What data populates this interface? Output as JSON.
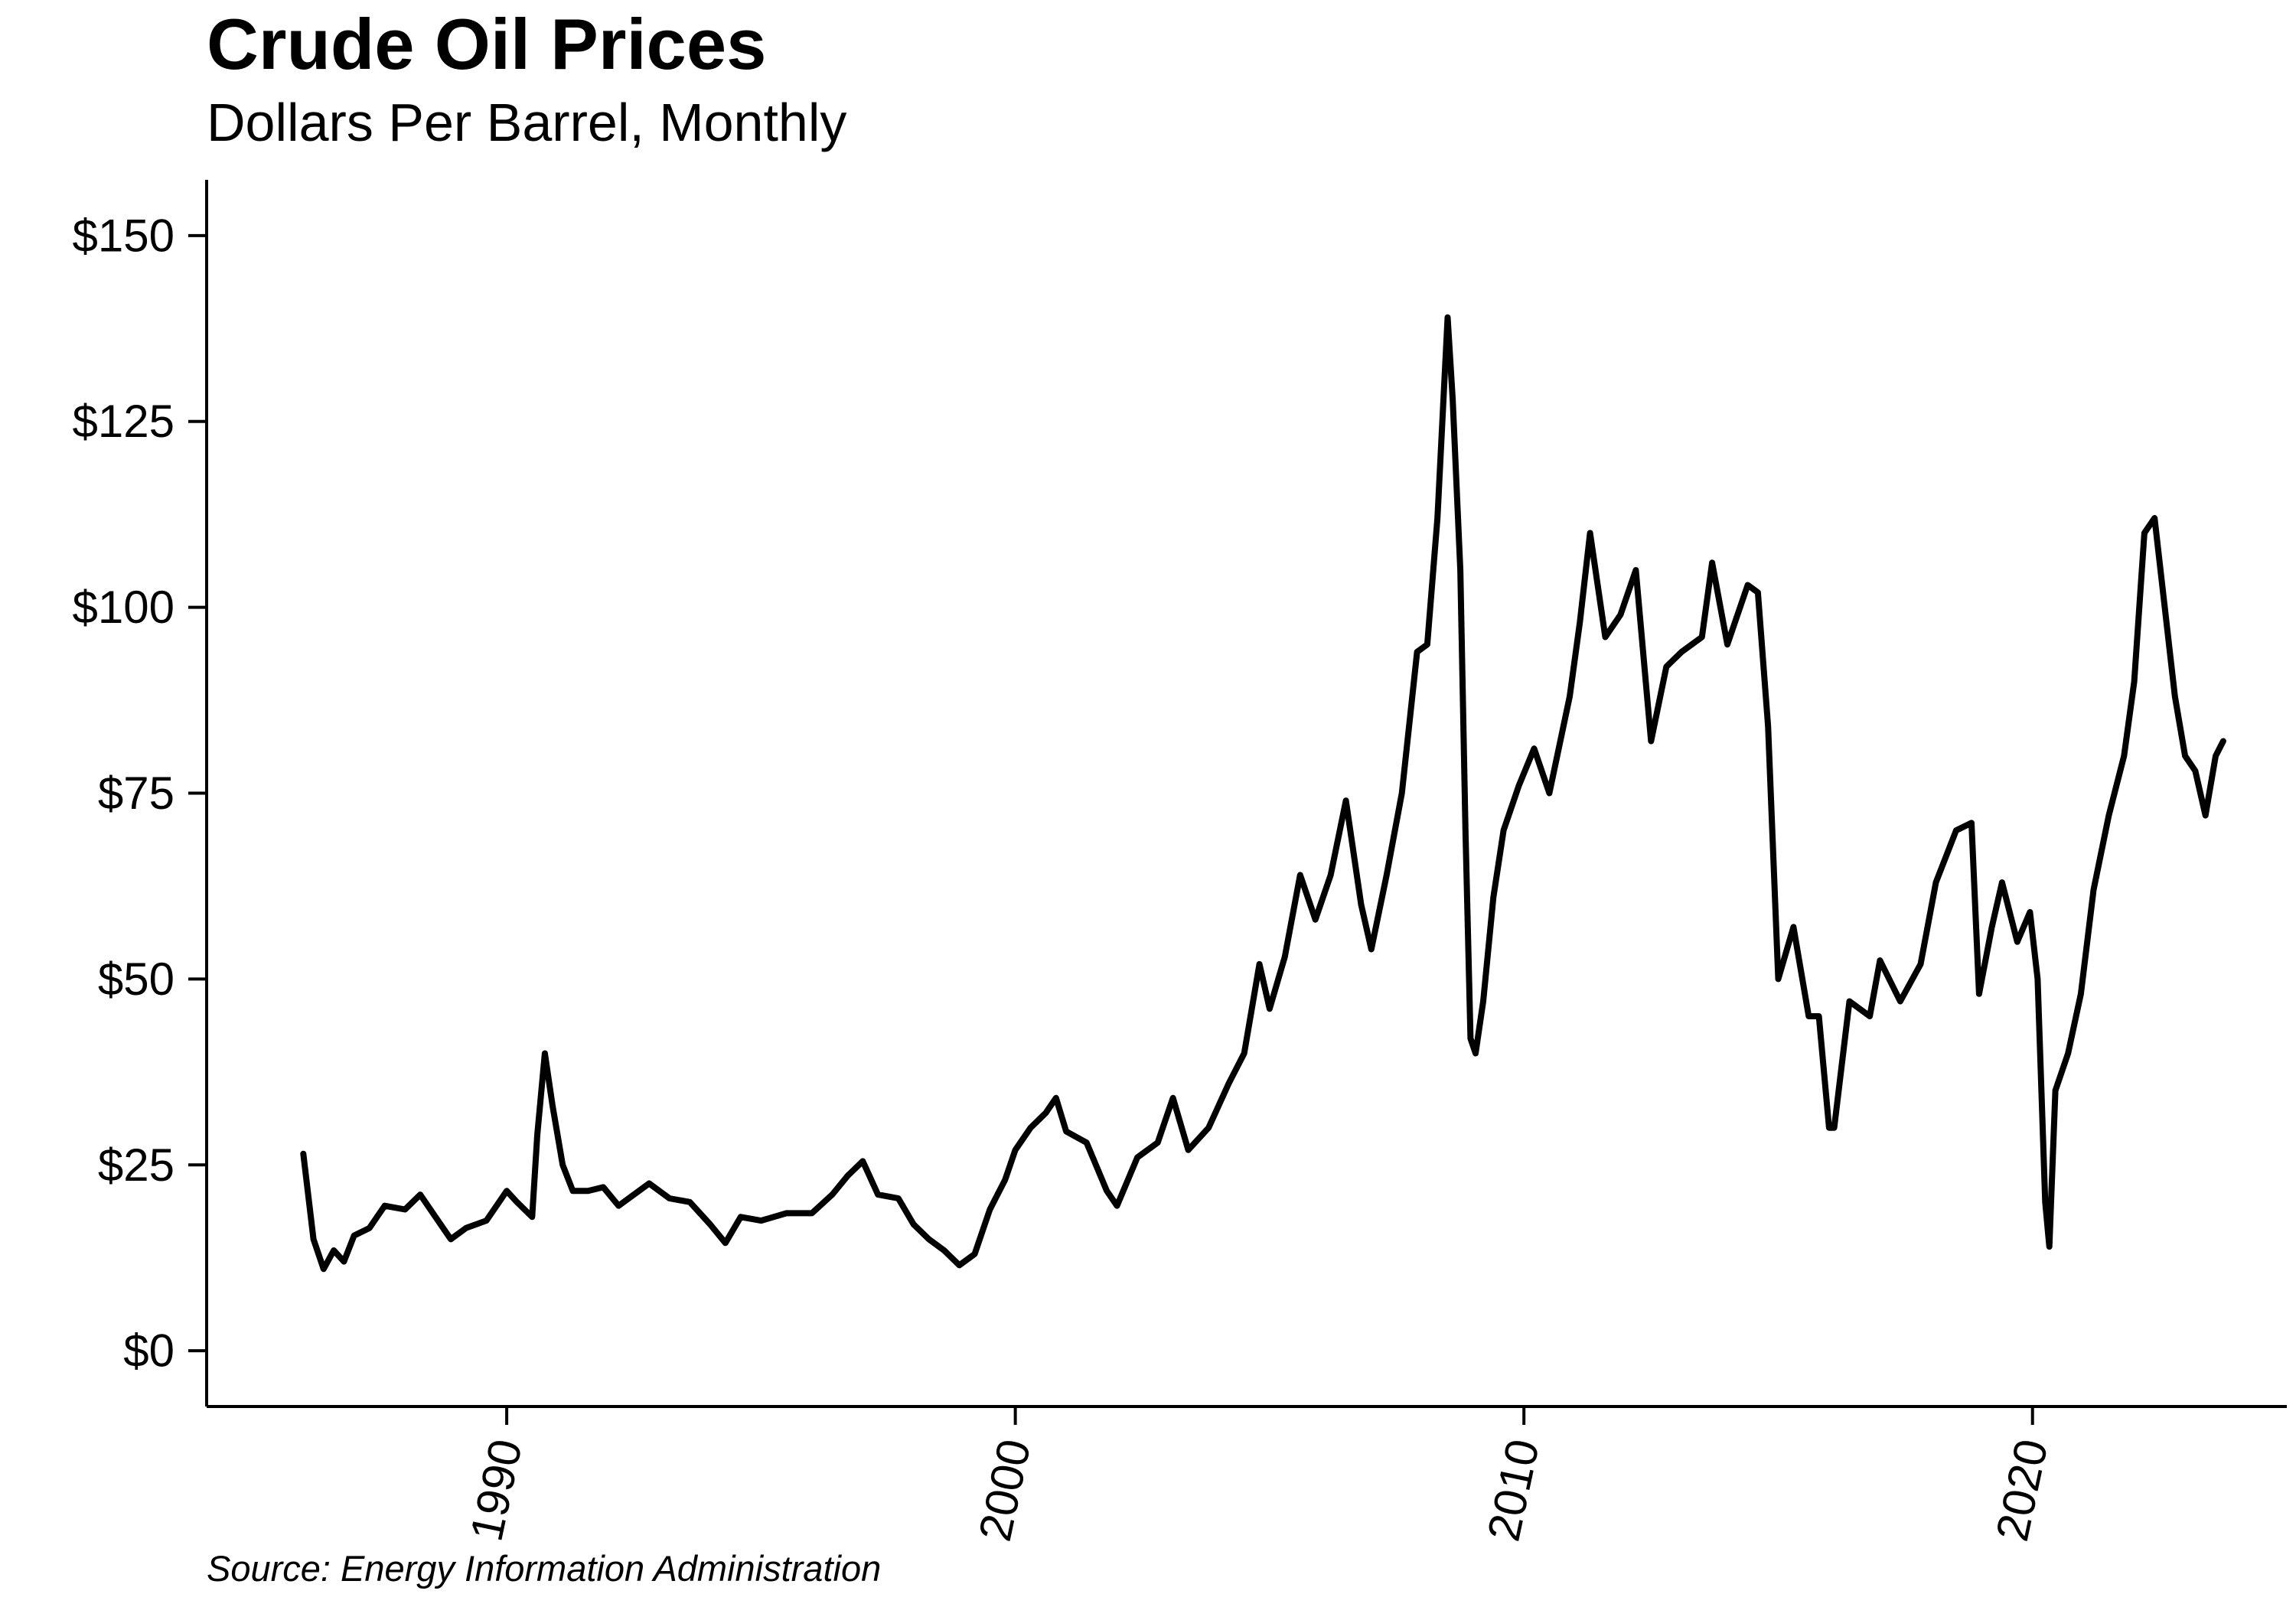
{
  "chart_data": {
    "type": "line",
    "title": "Crude Oil Prices",
    "subtitle": "Dollars Per Barrel, Monthly",
    "source": "Source: Energy Information Administration",
    "xlabel": "",
    "ylabel": "",
    "xlim": [
      1984.1,
      2025.0
    ],
    "ylim": [
      -7.5,
      157.5
    ],
    "y_ticks": [
      {
        "value": 0,
        "label": "$0"
      },
      {
        "value": 25,
        "label": "$25"
      },
      {
        "value": 50,
        "label": "$50"
      },
      {
        "value": 75,
        "label": "$75"
      },
      {
        "value": 100,
        "label": "$100"
      },
      {
        "value": 125,
        "label": "$125"
      },
      {
        "value": 150,
        "label": "$150"
      }
    ],
    "x_ticks": [
      {
        "value": 1990,
        "label": "1990"
      },
      {
        "value": 2000,
        "label": "2000"
      },
      {
        "value": 2010,
        "label": "2010"
      },
      {
        "value": 2020,
        "label": "2020"
      }
    ],
    "grid": false,
    "line_color": "#000000",
    "series": [
      {
        "name": "",
        "points": [
          [
            1986.0,
            26.5
          ],
          [
            1986.2,
            15.0
          ],
          [
            1986.4,
            11.0
          ],
          [
            1986.6,
            13.5
          ],
          [
            1986.8,
            12.0
          ],
          [
            1987.0,
            15.5
          ],
          [
            1987.3,
            16.5
          ],
          [
            1987.6,
            19.5
          ],
          [
            1988.0,
            19.0
          ],
          [
            1988.3,
            21.0
          ],
          [
            1988.6,
            18.0
          ],
          [
            1988.9,
            15.0
          ],
          [
            1989.2,
            16.5
          ],
          [
            1989.6,
            17.5
          ],
          [
            1990.0,
            21.5
          ],
          [
            1990.2,
            20.0
          ],
          [
            1990.5,
            18.0
          ],
          [
            1990.6,
            29.0
          ],
          [
            1990.75,
            40.0
          ],
          [
            1990.9,
            33.0
          ],
          [
            1991.1,
            25.0
          ],
          [
            1991.3,
            21.5
          ],
          [
            1991.6,
            21.5
          ],
          [
            1991.9,
            22.0
          ],
          [
            1992.2,
            19.5
          ],
          [
            1992.5,
            21.0
          ],
          [
            1992.8,
            22.5
          ],
          [
            1993.2,
            20.5
          ],
          [
            1993.6,
            20.0
          ],
          [
            1994.0,
            17.0
          ],
          [
            1994.3,
            14.5
          ],
          [
            1994.6,
            18.0
          ],
          [
            1995.0,
            17.5
          ],
          [
            1995.5,
            18.5
          ],
          [
            1996.0,
            18.5
          ],
          [
            1996.4,
            21.0
          ],
          [
            1996.7,
            23.5
          ],
          [
            1997.0,
            25.5
          ],
          [
            1997.3,
            21.0
          ],
          [
            1997.7,
            20.5
          ],
          [
            1998.0,
            17.0
          ],
          [
            1998.3,
            15.0
          ],
          [
            1998.6,
            13.5
          ],
          [
            1998.9,
            11.5
          ],
          [
            1999.2,
            13.0
          ],
          [
            1999.5,
            19.0
          ],
          [
            1999.8,
            23.0
          ],
          [
            2000.0,
            27.0
          ],
          [
            2000.3,
            30.0
          ],
          [
            2000.6,
            32.0
          ],
          [
            2000.8,
            34.0
          ],
          [
            2001.0,
            29.5
          ],
          [
            2001.4,
            28.0
          ],
          [
            2001.8,
            21.5
          ],
          [
            2002.0,
            19.5
          ],
          [
            2002.4,
            26.0
          ],
          [
            2002.8,
            28.0
          ],
          [
            2003.1,
            34.0
          ],
          [
            2003.4,
            27.0
          ],
          [
            2003.8,
            30.0
          ],
          [
            2004.2,
            36.0
          ],
          [
            2004.5,
            40.0
          ],
          [
            2004.8,
            52.0
          ],
          [
            2005.0,
            46.0
          ],
          [
            2005.3,
            53.0
          ],
          [
            2005.6,
            64.0
          ],
          [
            2005.9,
            58.0
          ],
          [
            2006.2,
            64.0
          ],
          [
            2006.5,
            74.0
          ],
          [
            2006.8,
            60.0
          ],
          [
            2007.0,
            54.0
          ],
          [
            2007.3,
            64.0
          ],
          [
            2007.6,
            75.0
          ],
          [
            2007.9,
            94.0
          ],
          [
            2008.1,
            95.0
          ],
          [
            2008.3,
            112.0
          ],
          [
            2008.5,
            139.0
          ],
          [
            2008.6,
            128.0
          ],
          [
            2008.75,
            105.0
          ],
          [
            2008.85,
            70.0
          ],
          [
            2008.95,
            42.0
          ],
          [
            2009.05,
            40.0
          ],
          [
            2009.2,
            47.0
          ],
          [
            2009.4,
            61.0
          ],
          [
            2009.6,
            70.0
          ],
          [
            2009.9,
            76.0
          ],
          [
            2010.2,
            81.0
          ],
          [
            2010.5,
            75.0
          ],
          [
            2010.9,
            88.0
          ],
          [
            2011.1,
            98.0
          ],
          [
            2011.3,
            110.0
          ],
          [
            2011.6,
            96.0
          ],
          [
            2011.9,
            99.0
          ],
          [
            2012.2,
            105.0
          ],
          [
            2012.5,
            82.0
          ],
          [
            2012.8,
            92.0
          ],
          [
            2013.1,
            94.0
          ],
          [
            2013.5,
            96.0
          ],
          [
            2013.7,
            106.0
          ],
          [
            2014.0,
            95.0
          ],
          [
            2014.4,
            103.0
          ],
          [
            2014.6,
            102.0
          ],
          [
            2014.8,
            84.0
          ],
          [
            2015.0,
            50.0
          ],
          [
            2015.3,
            57.0
          ],
          [
            2015.6,
            45.0
          ],
          [
            2015.8,
            45.0
          ],
          [
            2016.0,
            30.0
          ],
          [
            2016.1,
            30.0
          ],
          [
            2016.4,
            47.0
          ],
          [
            2016.8,
            45.0
          ],
          [
            2017.0,
            52.5
          ],
          [
            2017.4,
            47.0
          ],
          [
            2017.8,
            52.0
          ],
          [
            2018.1,
            63.0
          ],
          [
            2018.5,
            70.0
          ],
          [
            2018.8,
            71.0
          ],
          [
            2018.95,
            48.0
          ],
          [
            2019.2,
            57.0
          ],
          [
            2019.4,
            63.0
          ],
          [
            2019.7,
            55.0
          ],
          [
            2019.95,
            59.0
          ],
          [
            2020.1,
            50.0
          ],
          [
            2020.25,
            20.0
          ],
          [
            2020.33,
            14.0
          ],
          [
            2020.45,
            35.0
          ],
          [
            2020.7,
            40.0
          ],
          [
            2020.95,
            48.0
          ],
          [
            2021.2,
            62.0
          ],
          [
            2021.5,
            72.0
          ],
          [
            2021.8,
            80.0
          ],
          [
            2022.0,
            90.0
          ],
          [
            2022.2,
            110.0
          ],
          [
            2022.4,
            112.0
          ],
          [
            2022.6,
            100.0
          ],
          [
            2022.8,
            88.0
          ],
          [
            2023.0,
            80.0
          ],
          [
            2023.2,
            78.0
          ],
          [
            2023.4,
            72.0
          ],
          [
            2023.6,
            80.0
          ],
          [
            2023.75,
            82.0
          ]
        ]
      }
    ]
  }
}
